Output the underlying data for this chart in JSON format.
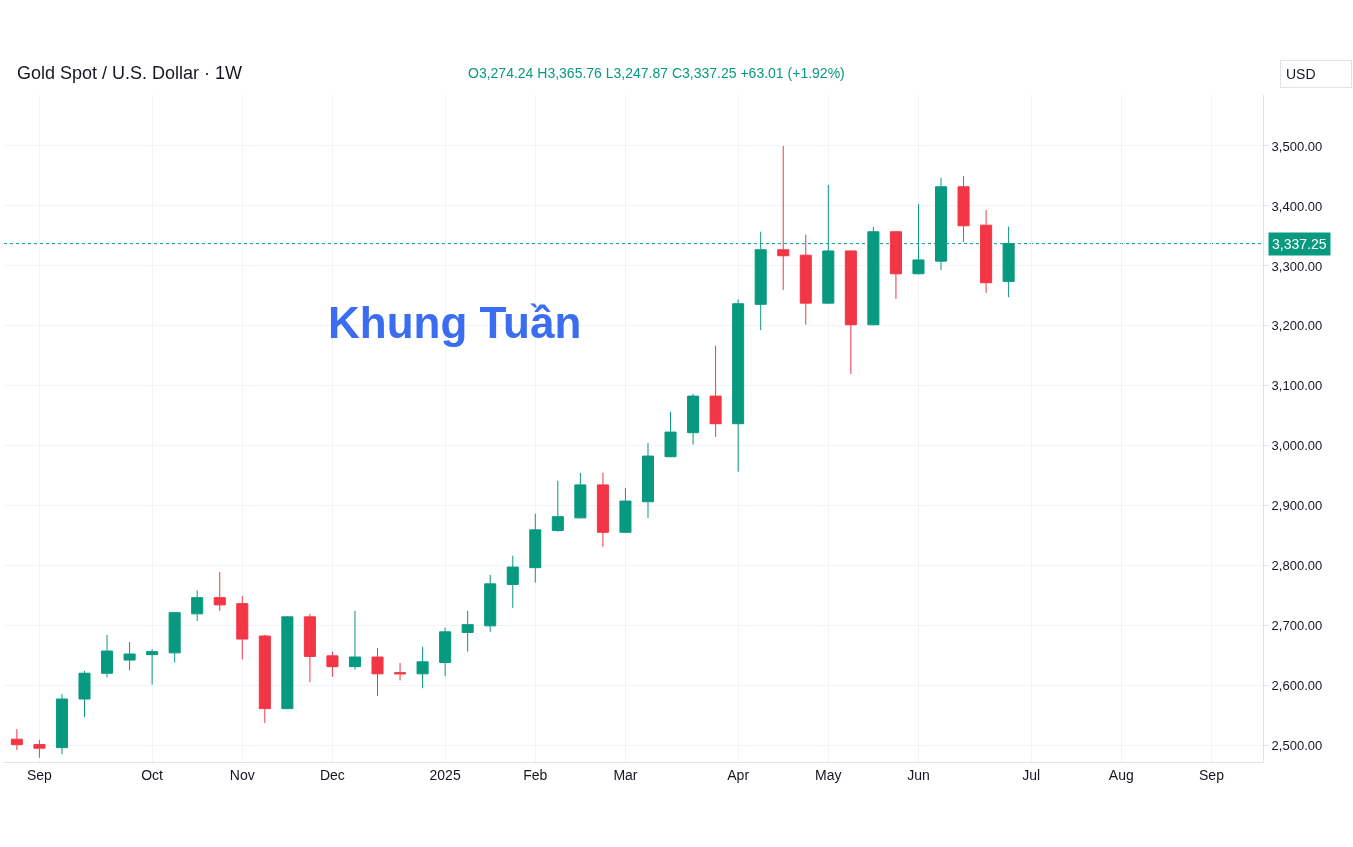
{
  "chart_data": {
    "type": "candlestick",
    "title": "Gold Spot / U.S. Dollar · 1W",
    "ylabel": "USD",
    "x": [
      "2024-08-26",
      "2024-09-02",
      "2024-09-09",
      "2024-09-16",
      "2024-09-23",
      "2024-09-30",
      "2024-10-07",
      "2024-10-14",
      "2024-10-21",
      "2024-10-28",
      "2024-11-04",
      "2024-11-11",
      "2024-11-18",
      "2024-11-25",
      "2024-12-02",
      "2024-12-09",
      "2024-12-16",
      "2024-12-23",
      "2024-12-30",
      "2025-01-06",
      "2025-01-13",
      "2025-01-20",
      "2025-01-27",
      "2025-02-03",
      "2025-02-10",
      "2025-02-17",
      "2025-02-24",
      "2025-03-03",
      "2025-03-10",
      "2025-03-17",
      "2025-03-24",
      "2025-03-31",
      "2025-04-07",
      "2025-04-14",
      "2025-04-21",
      "2025-04-28",
      "2025-05-05",
      "2025-05-12",
      "2025-05-19",
      "2025-05-26",
      "2025-06-02",
      "2025-06-09",
      "2025-06-16",
      "2025-06-23",
      "2025-06-30"
    ],
    "ohlc": [
      [
        2511,
        2528,
        2493,
        2502
      ],
      [
        2502,
        2510,
        2480,
        2496
      ],
      [
        2497,
        2586,
        2486,
        2578
      ],
      [
        2578,
        2625,
        2548,
        2621
      ],
      [
        2621,
        2685,
        2614,
        2658
      ],
      [
        2643,
        2673,
        2626,
        2653
      ],
      [
        2652,
        2661,
        2602,
        2657
      ],
      [
        2655,
        2722,
        2639,
        2722
      ],
      [
        2720,
        2759,
        2708,
        2747
      ],
      [
        2747,
        2790,
        2725,
        2735
      ],
      [
        2737,
        2750,
        2644,
        2678
      ],
      [
        2683,
        2685,
        2538,
        2562
      ],
      [
        2562,
        2716,
        2561,
        2715
      ],
      [
        2715,
        2720,
        2606,
        2649
      ],
      [
        2650,
        2657,
        2615,
        2632
      ],
      [
        2632,
        2725,
        2627,
        2648
      ],
      [
        2648,
        2663,
        2583,
        2620
      ],
      [
        2622,
        2638,
        2609,
        2620
      ],
      [
        2620,
        2665,
        2596,
        2640
      ],
      [
        2639,
        2697,
        2616,
        2690
      ],
      [
        2689,
        2725,
        2657,
        2702
      ],
      [
        2700,
        2785,
        2690,
        2770
      ],
      [
        2769,
        2817,
        2730,
        2798
      ],
      [
        2797,
        2887,
        2772,
        2860
      ],
      [
        2859,
        2942,
        2857,
        2882
      ],
      [
        2880,
        2955,
        2879,
        2935
      ],
      [
        2935,
        2955,
        2832,
        2856
      ],
      [
        2856,
        2930,
        2855,
        2908
      ],
      [
        2907,
        3005,
        2880,
        2983
      ],
      [
        2982,
        3057,
        2981,
        3023
      ],
      [
        3022,
        3087,
        3002,
        3083
      ],
      [
        3083,
        3167,
        3015,
        3037
      ],
      [
        3037,
        3244,
        2957,
        3237
      ],
      [
        3236,
        3357,
        3193,
        3327
      ],
      [
        3327,
        3500,
        3260,
        3317
      ],
      [
        3318,
        3352,
        3202,
        3238
      ],
      [
        3238,
        3435,
        3237,
        3325
      ],
      [
        3325,
        3326,
        3120,
        3202
      ],
      [
        3202,
        3365,
        3201,
        3357
      ],
      [
        3357,
        3358,
        3245,
        3287
      ],
      [
        3287,
        3403,
        3286,
        3310
      ],
      [
        3308,
        3447,
        3293,
        3432
      ],
      [
        3432,
        3450,
        3340,
        3367
      ],
      [
        3368,
        3393,
        3255,
        3272
      ],
      [
        3274.24,
        3365.76,
        3247.87,
        3337.25
      ]
    ],
    "colors": [
      "#f23645",
      "#f23645",
      "#089981",
      "#089981",
      "#089981",
      "#089981",
      "#089981",
      "#089981",
      "#089981",
      "#f23645",
      "#f23645",
      "#f23645",
      "#089981",
      "#f23645",
      "#f23645",
      "#089981",
      "#f23645",
      "#f23645",
      "#089981",
      "#089981",
      "#089981",
      "#089981",
      "#089981",
      "#089981",
      "#089981",
      "#089981",
      "#f23645",
      "#089981",
      "#089981",
      "#089981",
      "#089981",
      "#f23645",
      "#089981",
      "#089981",
      "#f23645",
      "#f23645",
      "#089981",
      "#f23645",
      "#089981",
      "#f23645",
      "#089981",
      "#089981",
      "#f23645",
      "#f23645",
      "#089981"
    ],
    "xlim": [
      "2024-08-22",
      "2025-09-17"
    ],
    "xticks": [
      {
        "value": "2024-09-02",
        "label": "Sep"
      },
      {
        "value": "2024-10-07",
        "label": "Oct"
      },
      {
        "value": "2024-11-04",
        "label": "Nov"
      },
      {
        "value": "2024-12-02",
        "label": "Dec"
      },
      {
        "value": "2025-01-06",
        "label": "2025"
      },
      {
        "value": "2025-02-03",
        "label": "Feb"
      },
      {
        "value": "2025-03-03",
        "label": "Mar"
      },
      {
        "value": "2025-04-07",
        "label": "Apr"
      },
      {
        "value": "2025-05-05",
        "label": "May"
      },
      {
        "value": "2025-06-02",
        "label": "Jun"
      },
      {
        "value": "2025-07-07",
        "label": "Jul"
      },
      {
        "value": "2025-08-04",
        "label": "Aug"
      },
      {
        "value": "2025-09-01",
        "label": "Sep"
      }
    ],
    "ylim": [
      2473,
      3585
    ],
    "yticks": [
      {
        "value": 2500,
        "label": "2,500.00"
      },
      {
        "value": 2600,
        "label": "2,600.00"
      },
      {
        "value": 2700,
        "label": "2,700.00"
      },
      {
        "value": 2800,
        "label": "2,800.00"
      },
      {
        "value": 2900,
        "label": "2,900.00"
      },
      {
        "value": 3000,
        "label": "3,000.00"
      },
      {
        "value": 3100,
        "label": "3,100.00"
      },
      {
        "value": 3200,
        "label": "3,200.00"
      },
      {
        "value": 3300,
        "label": "3,300.00"
      },
      {
        "value": 3400,
        "label": "3,400.00"
      },
      {
        "value": 3500,
        "label": "3,500.00"
      }
    ],
    "grid": true,
    "ref_lines": [
      {
        "axis": "y",
        "value": 3337.25,
        "label": "3,337.25",
        "color": "#089981",
        "line_style": "dotted"
      }
    ],
    "annotations": [
      "O3,274.24 H3,365.76 L3,247.87 C3,337.25 +63.01 (+1.92%)",
      "Khung Tuần"
    ]
  }
}
